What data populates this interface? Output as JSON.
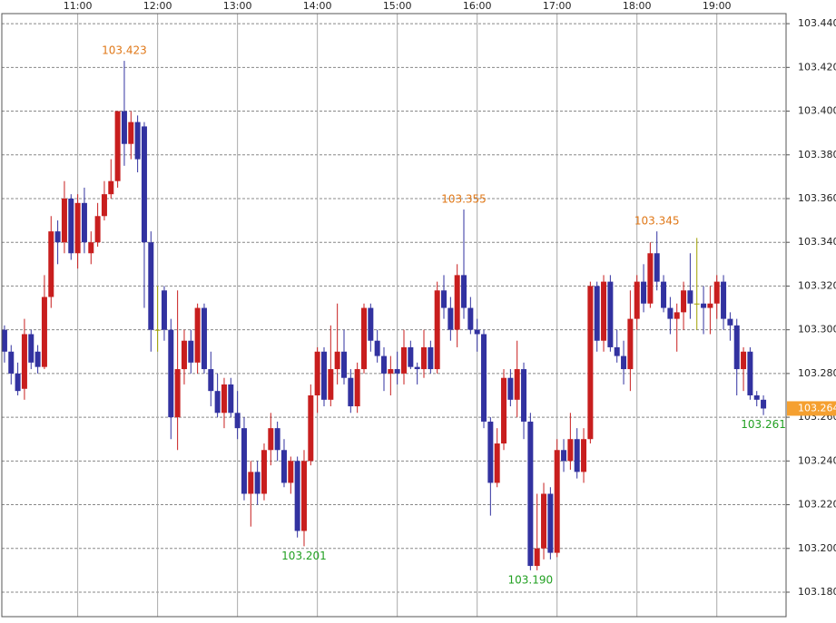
{
  "chart_data": {
    "type": "candlestick",
    "up_color": "#c81e1e",
    "down_color": "#3232a0",
    "flat_color": "#a0a000",
    "high_label_color": "#e07818",
    "low_label_color": "#22a022",
    "last_price_color": "#f5a030",
    "grid": true,
    "xlim": [
      603,
      1192
    ],
    "xticks": [
      {
        "value": 660,
        "label": "11:00"
      },
      {
        "value": 720,
        "label": "12:00"
      },
      {
        "value": 780,
        "label": "13:00"
      },
      {
        "value": 840,
        "label": "14:00"
      },
      {
        "value": 900,
        "label": "15:00"
      },
      {
        "value": 960,
        "label": "16:00"
      },
      {
        "value": 1020,
        "label": "17:00"
      },
      {
        "value": 1080,
        "label": "18:00"
      },
      {
        "value": 1140,
        "label": "19:00"
      }
    ],
    "ylim": [
      103.1688,
      103.4446
    ],
    "yticks": [
      {
        "value": 103.18,
        "label": "103.180"
      },
      {
        "value": 103.2,
        "label": "103.200"
      },
      {
        "value": 103.22,
        "label": "103.220"
      },
      {
        "value": 103.24,
        "label": "103.240"
      },
      {
        "value": 103.26,
        "label": "103.260"
      },
      {
        "value": 103.28,
        "label": "103.280"
      },
      {
        "value": 103.3,
        "label": "103.300"
      },
      {
        "value": 103.32,
        "label": "103.320"
      },
      {
        "value": 103.34,
        "label": "103.340"
      },
      {
        "value": 103.36,
        "label": "103.360"
      },
      {
        "value": 103.38,
        "label": "103.380"
      },
      {
        "value": 103.4,
        "label": "103.400"
      },
      {
        "value": 103.42,
        "label": "103.420"
      },
      {
        "value": 103.44,
        "label": "103.440"
      }
    ],
    "last_price": {
      "value": 103.264,
      "label": "103.264"
    },
    "annotations": [
      {
        "x": 695,
        "value": 103.423,
        "label": "103.423"
      },
      {
        "x": 950,
        "value": 103.355,
        "label": "103.355"
      },
      {
        "x": 1095,
        "value": 103.345,
        "label": "103.345"
      },
      {
        "x": 830,
        "value": 103.201,
        "label": "103.201"
      },
      {
        "x": 1000,
        "value": 103.19,
        "label": "103.190"
      },
      {
        "x": 1175,
        "value": 103.261,
        "label": "103.261"
      }
    ],
    "x": [
      605,
      610,
      615,
      620,
      625,
      630,
      635,
      640,
      645,
      650,
      655,
      660,
      665,
      670,
      675,
      680,
      685,
      690,
      695,
      700,
      705,
      710,
      715,
      720,
      725,
      730,
      735,
      740,
      745,
      750,
      755,
      760,
      765,
      770,
      775,
      780,
      785,
      790,
      795,
      800,
      805,
      810,
      815,
      820,
      825,
      830,
      835,
      840,
      845,
      850,
      855,
      860,
      865,
      870,
      875,
      880,
      885,
      890,
      895,
      900,
      905,
      910,
      915,
      920,
      925,
      930,
      935,
      940,
      945,
      950,
      955,
      960,
      965,
      970,
      975,
      980,
      985,
      990,
      995,
      1000,
      1005,
      1010,
      1015,
      1020,
      1025,
      1030,
      1035,
      1040,
      1045,
      1050,
      1055,
      1060,
      1065,
      1070,
      1075,
      1080,
      1085,
      1090,
      1095,
      1100,
      1105,
      1110,
      1115,
      1120,
      1125,
      1130,
      1135,
      1140,
      1145,
      1150,
      1155,
      1160,
      1165,
      1170,
      1175
    ],
    "open": [
      103.3,
      103.29,
      103.28,
      103.273,
      103.298,
      103.29,
      103.283,
      103.315,
      103.345,
      103.34,
      103.36,
      103.335,
      103.358,
      103.335,
      103.34,
      103.352,
      103.362,
      103.368,
      103.4,
      103.385,
      103.395,
      103.393,
      103.34,
      103.3,
      103.318,
      103.3,
      103.26,
      103.282,
      103.295,
      103.285,
      103.31,
      103.282,
      103.272,
      103.262,
      103.275,
      103.262,
      103.255,
      103.225,
      103.235,
      103.225,
      103.245,
      103.255,
      103.245,
      103.23,
      103.24,
      103.208,
      103.24,
      103.27,
      103.29,
      103.268,
      103.282,
      103.29,
      103.278,
      103.265,
      103.282,
      103.31,
      103.295,
      103.288,
      103.28,
      103.282,
      103.28,
      103.292,
      103.283,
      103.282,
      103.292,
      103.282,
      103.318,
      103.31,
      103.3,
      103.325,
      103.31,
      103.3,
      103.298,
      103.258,
      103.23,
      103.248,
      103.278,
      103.268,
      103.282,
      103.258,
      103.192,
      103.2,
      103.225,
      103.198,
      103.245,
      103.24,
      103.25,
      103.235,
      103.25,
      103.32,
      103.295,
      103.322,
      103.292,
      103.288,
      103.282,
      103.305,
      103.322,
      103.312,
      103.335,
      103.322,
      103.31,
      103.305,
      103.308,
      103.318,
      103.312,
      103.312,
      103.31,
      103.312,
      103.322,
      103.305,
      103.302,
      103.282,
      103.29,
      103.27,
      103.268
    ],
    "high": [
      103.302,
      103.293,
      103.285,
      103.305,
      103.3,
      103.293,
      103.325,
      103.352,
      103.35,
      103.368,
      103.362,
      103.362,
      103.365,
      103.345,
      103.358,
      103.368,
      103.378,
      103.4,
      103.423,
      103.4,
      103.398,
      103.395,
      103.345,
      103.32,
      103.32,
      103.305,
      103.318,
      103.3,
      103.3,
      103.312,
      103.312,
      103.29,
      103.28,
      103.278,
      103.278,
      103.272,
      103.26,
      103.24,
      103.24,
      103.248,
      103.262,
      103.258,
      103.25,
      103.242,
      103.242,
      103.245,
      103.275,
      103.292,
      103.292,
      103.302,
      103.312,
      103.3,
      103.282,
      103.285,
      103.312,
      103.312,
      103.3,
      103.292,
      103.288,
      103.29,
      103.3,
      103.295,
      103.285,
      103.3,
      103.295,
      103.322,
      103.325,
      103.315,
      103.33,
      103.355,
      103.315,
      103.305,
      103.3,
      103.26,
      103.255,
      103.282,
      103.282,
      103.295,
      103.285,
      103.262,
      103.225,
      103.23,
      103.228,
      103.25,
      103.25,
      103.262,
      103.255,
      103.255,
      103.322,
      103.322,
      103.325,
      103.325,
      103.3,
      103.295,
      103.318,
      103.325,
      103.33,
      103.34,
      103.345,
      103.325,
      103.315,
      103.312,
      103.322,
      103.335,
      103.342,
      103.32,
      103.32,
      103.325,
      103.325,
      103.308,
      103.305,
      103.292,
      103.292,
      103.272,
      103.27
    ],
    "low": [
      103.285,
      103.275,
      103.27,
      103.268,
      103.282,
      103.28,
      103.282,
      103.31,
      103.33,
      103.335,
      103.332,
      103.328,
      103.335,
      103.33,
      103.338,
      103.35,
      103.36,
      103.365,
      103.375,
      103.378,
      103.372,
      103.31,
      103.29,
      103.29,
      103.295,
      103.25,
      103.245,
      103.275,
      103.28,
      103.28,
      103.28,
      103.265,
      103.26,
      103.255,
      103.26,
      103.25,
      103.222,
      103.21,
      103.22,
      103.222,
      103.238,
      103.24,
      103.228,
      103.225,
      103.205,
      103.201,
      103.238,
      103.262,
      103.265,
      103.265,
      103.275,
      103.275,
      103.262,
      103.262,
      103.28,
      103.29,
      103.285,
      103.272,
      103.27,
      103.275,
      103.275,
      103.282,
      103.275,
      103.278,
      103.28,
      103.28,
      103.305,
      103.295,
      103.292,
      103.305,
      103.298,
      103.29,
      103.255,
      103.215,
      103.228,
      103.245,
      103.265,
      103.26,
      103.25,
      103.19,
      103.19,
      103.195,
      103.195,
      103.196,
      103.235,
      103.236,
      103.232,
      103.23,
      103.248,
      103.29,
      103.29,
      103.29,
      103.285,
      103.275,
      103.272,
      103.3,
      103.308,
      103.31,
      103.318,
      103.308,
      103.298,
      103.29,
      103.3,
      103.305,
      103.3,
      103.298,
      103.298,
      103.305,
      103.3,
      103.295,
      103.27,
      103.272,
      103.268,
      103.265,
      103.261
    ],
    "close": [
      103.29,
      103.28,
      103.272,
      103.298,
      103.285,
      103.283,
      103.315,
      103.345,
      103.34,
      103.36,
      103.335,
      103.358,
      103.34,
      103.34,
      103.352,
      103.362,
      103.368,
      103.4,
      103.385,
      103.395,
      103.378,
      103.34,
      103.3,
      103.3,
      103.3,
      103.26,
      103.282,
      103.295,
      103.285,
      103.31,
      103.282,
      103.272,
      103.262,
      103.275,
      103.262,
      103.255,
      103.225,
      103.235,
      103.225,
      103.245,
      103.255,
      103.245,
      103.23,
      103.24,
      103.208,
      103.24,
      103.27,
      103.29,
      103.268,
      103.282,
      103.29,
      103.278,
      103.265,
      103.282,
      103.31,
      103.295,
      103.288,
      103.28,
      103.282,
      103.28,
      103.292,
      103.283,
      103.282,
      103.292,
      103.282,
      103.318,
      103.31,
      103.3,
      103.325,
      103.31,
      103.3,
      103.298,
      103.258,
      103.23,
      103.248,
      103.278,
      103.268,
      103.282,
      103.258,
      103.192,
      103.2,
      103.225,
      103.198,
      103.245,
      103.24,
      103.25,
      103.235,
      103.25,
      103.32,
      103.295,
      103.322,
      103.292,
      103.288,
      103.282,
      103.305,
      103.322,
      103.312,
      103.335,
      103.322,
      103.31,
      103.305,
      103.308,
      103.318,
      103.312,
      103.312,
      103.31,
      103.312,
      103.322,
      103.305,
      103.302,
      103.282,
      103.29,
      103.27,
      103.268,
      103.264
    ]
  }
}
